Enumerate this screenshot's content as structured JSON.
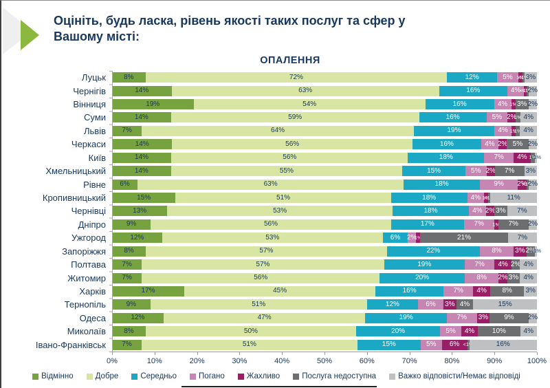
{
  "header": {
    "title_line1": "Оцініть, будь ласка, рівень якості таких послуг та сфер у",
    "title_line2": "Вашому місті:"
  },
  "colors": {
    "title_text": "#17375e",
    "axis": "#9b9b9b"
  },
  "chart_data": {
    "type": "bar",
    "subtype": "horizontal-stacked-100",
    "title": "ОПАЛЕННЯ",
    "xlim": [
      0,
      100
    ],
    "grid": false,
    "legend_position": "bottom",
    "x_ticks": [
      "0%",
      "10%",
      "20%",
      "30%",
      "40%",
      "50%",
      "60%",
      "70%",
      "80%",
      "90%",
      "100%"
    ],
    "categories": [
      "Луцьк",
      "Чернігів",
      "Вінниця",
      "Суми",
      "Львів",
      "Черкаси",
      "Київ",
      "Хмельницький",
      "Рівне",
      "Кропивницький",
      "Чернівці",
      "Дніпро",
      "Ужгород",
      "Запоріжжя",
      "Полтава",
      "Житомир",
      "Харків",
      "Тернопіль",
      "Одеса",
      "Миколаїв",
      "Івано-Франківськ"
    ],
    "series": [
      {
        "name": "Відмінно",
        "color": "#76a240",
        "text_color": "#17375e",
        "values": [
          8,
          14,
          19,
          14,
          7,
          14,
          14,
          14,
          6,
          15,
          13,
          9,
          12,
          8,
          7,
          7,
          17,
          9,
          12,
          8,
          7
        ],
        "labels": [
          "8%",
          "14%",
          "19%",
          "14%",
          "7%",
          "14%",
          "14%",
          "14%",
          "6%",
          "15%",
          "13%",
          "9%",
          "12%",
          "8%",
          "7%",
          "7%",
          "17%",
          "9%",
          "12%",
          "8%",
          "7%"
        ]
      },
      {
        "name": "Добре",
        "color": "#d9e6a3",
        "text_color": "#17375e",
        "values": [
          72,
          63,
          54,
          59,
          64,
          56,
          56,
          55,
          63,
          51,
          53,
          56,
          53,
          57,
          57,
          56,
          45,
          51,
          47,
          50,
          51
        ],
        "labels": [
          "72%",
          "63%",
          "54%",
          "59%",
          "64%",
          "56%",
          "56%",
          "55%",
          "63%",
          "51%",
          "53%",
          "56%",
          "53%",
          "57%",
          "57%",
          "56%",
          "45%",
          "51%",
          "47%",
          "50%",
          "51%"
        ]
      },
      {
        "name": "Середньо",
        "color": "#1ba8c4",
        "text_color": "#ffffff",
        "values": [
          12,
          16,
          16,
          16,
          19,
          16,
          18,
          15,
          18,
          18,
          18,
          17,
          6,
          22,
          19,
          20,
          16,
          12,
          19,
          20,
          15
        ],
        "labels": [
          "12%",
          "16%",
          "16%",
          "16%",
          "19%",
          "16%",
          "18%",
          "15%",
          "18%",
          "18%",
          "18%",
          "17%",
          "6%",
          "22%",
          "19%",
          "20%",
          "16%",
          "12%",
          "19%",
          "20%",
          "15%"
        ]
      },
      {
        "name": "Погано",
        "color": "#c685b2",
        "text_color": "#ffffff",
        "values": [
          5,
          4,
          4,
          5,
          4,
          4,
          7,
          5,
          9,
          4,
          4,
          7,
          2,
          8,
          7,
          8,
          7,
          6,
          7,
          5,
          5
        ],
        "labels": [
          "5%",
          "4%",
          "4%",
          "5%",
          "4%",
          "4%",
          "7%",
          "5%",
          "9%",
          "4%",
          "4%",
          "7%",
          "2%",
          "8%",
          "7%",
          "8%",
          "7%",
          "6%",
          "7%",
          "5%",
          "5%"
        ]
      },
      {
        "name": "Жахливо",
        "color": "#9a1e66",
        "text_color": "#ffffff",
        "values": [
          1,
          0.5,
          1,
          2,
          1,
          2,
          4,
          2,
          2,
          1,
          2,
          1,
          1,
          3,
          4,
          2,
          4,
          3,
          3,
          4,
          6
        ],
        "labels": [
          "1%",
          "<1%",
          "1%",
          "2%",
          "1%",
          "2%",
          "4%",
          "2%",
          "2%",
          "1%",
          "2%",
          "1%",
          "1%",
          "3%",
          "4%",
          "2%",
          "4%",
          "3%",
          "3%",
          "4%",
          "6%"
        ]
      },
      {
        "name": "Послуга недоступна",
        "color": "#6d6e70",
        "text_color": "#ffffff",
        "values": [
          0.5,
          0.5,
          3,
          1,
          1,
          5,
          1,
          7,
          0.5,
          0.5,
          3,
          7,
          21,
          2,
          2,
          3,
          8,
          4,
          9,
          10,
          0.5
        ],
        "labels": [
          "<1%",
          "<1%",
          "3%",
          "1%",
          "1%",
          "5%",
          "1%",
          "7%",
          "<1%",
          "<1%",
          "3%",
          "7%",
          "21%",
          "2%",
          "2%",
          "3%",
          "8%",
          "4%",
          "9%",
          "10%",
          "<1%"
        ]
      },
      {
        "name": "Важко відповісти/Немає відповіді",
        "color": "#bec0c2",
        "text_color": "#17375e",
        "values": [
          3,
          2,
          2,
          4,
          4,
          2,
          0.5,
          3,
          2,
          11,
          7,
          2,
          7,
          0.5,
          4,
          4,
          3,
          15,
          2,
          4,
          16
        ],
        "labels": [
          "3%",
          "2%",
          "2%",
          "4%",
          "4%",
          "2%",
          "<1%",
          "3%",
          "2%",
          "11%",
          "7%",
          "2%",
          "7%",
          "<1%",
          "4%",
          "4%",
          "3%",
          "15%",
          "2%",
          "4%",
          "16%"
        ]
      }
    ]
  }
}
